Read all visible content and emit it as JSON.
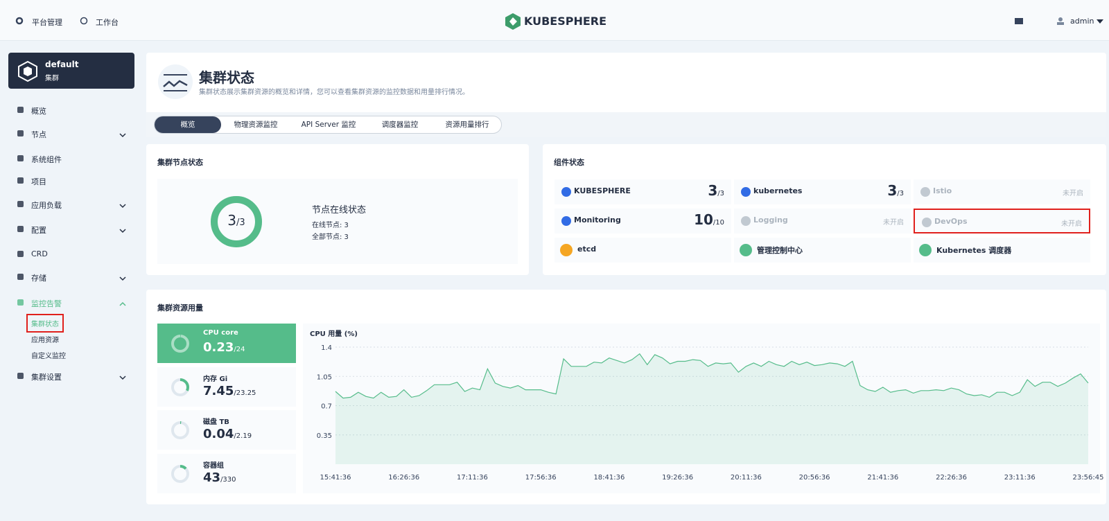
{
  "header": {
    "platform": "平台管理",
    "workbench": "工作台",
    "logo": "KUBESPHERE",
    "user": "admin"
  },
  "cluster": {
    "name": "default",
    "type": "集群"
  },
  "nav": [
    {
      "label": "概览"
    },
    {
      "label": "节点",
      "expandable": true
    },
    {
      "label": "系统组件"
    },
    {
      "label": "项目"
    },
    {
      "label": "应用负载",
      "expandable": true
    },
    {
      "label": "配置",
      "expandable": true
    },
    {
      "label": "CRD"
    },
    {
      "label": "存储",
      "expandable": true
    },
    {
      "label": "监控告警",
      "expanded": true,
      "active": true,
      "children": [
        {
          "label": "集群状态",
          "active": true,
          "highlighted": true
        },
        {
          "label": "应用资源"
        },
        {
          "label": "自定义监控"
        }
      ]
    },
    {
      "label": "集群设置",
      "expandable": true
    }
  ],
  "page": {
    "title": "集群状态",
    "description": "集群状态展示集群资源的概览和详情，您可以查看集群资源的监控数据和用量排行情况。"
  },
  "tabs": {
    "items": [
      "概览",
      "物理资源监控",
      "API Server 监控",
      "调度器监控",
      "资源用量排行"
    ],
    "active": 0
  },
  "node_status": {
    "title": "集群节点状态",
    "online": 3,
    "total": {
      "value": 3,
      "label": "/3"
    },
    "heading": "节点在线状态",
    "details": [
      "在线节点: 3",
      "全部节点: 3"
    ]
  },
  "components": {
    "title": "组件状态",
    "items": [
      {
        "name": "KUBESPHERE",
        "count": 3,
        "total": "/3"
      },
      {
        "name": "kubernetes",
        "count": 3,
        "total": "/3"
      },
      {
        "name": "Istio",
        "status": "未开启"
      },
      {
        "name": "Monitoring",
        "count": 10,
        "total": "/10"
      },
      {
        "name": "Logging",
        "status": "未开启"
      },
      {
        "name": "DevOps",
        "status": "未开启",
        "highlighted": true
      },
      {
        "name": "etcd"
      },
      {
        "name": "管理控制中心"
      },
      {
        "name": "Kubernetes 调度器"
      }
    ]
  },
  "resources": {
    "title": "集群资源用量",
    "cards": [
      {
        "label": "CPU core",
        "value": 0.23,
        "total": {
          "value": 24,
          "label": "/24"
        },
        "active": true
      },
      {
        "label": "内存 Gi",
        "value": 7.45,
        "total": {
          "value": 23.25,
          "label": "/23.25"
        }
      },
      {
        "label": "磁盘 TB",
        "value": 0.04,
        "total": {
          "value": 2.19,
          "label": "/2.19"
        }
      },
      {
        "label": "容器组",
        "value": 43,
        "total": {
          "value": 330,
          "label": "/330"
        }
      }
    ]
  },
  "chart_data": {
    "type": "line",
    "title": "CPU 用量 (%)",
    "color": "#55bc8a",
    "grid": true,
    "categories": [
      "15:41:36",
      null,
      null,
      null,
      null,
      null,
      null,
      null,
      null,
      "16:26:36",
      null,
      null,
      null,
      null,
      null,
      null,
      null,
      null,
      "17:11:36",
      null,
      null,
      null,
      null,
      null,
      null,
      null,
      null,
      "17:56:36",
      null,
      null,
      null,
      null,
      null,
      null,
      null,
      null,
      "18:41:36",
      null,
      null,
      null,
      null,
      null,
      null,
      null,
      null,
      "19:26:36",
      null,
      null,
      null,
      null,
      null,
      null,
      null,
      null,
      "20:11:36",
      null,
      null,
      null,
      null,
      null,
      null,
      null,
      null,
      "20:56:36",
      null,
      null,
      null,
      null,
      null,
      null,
      null,
      null,
      "21:41:36",
      null,
      null,
      null,
      null,
      null,
      null,
      null,
      null,
      "22:26:36",
      null,
      null,
      null,
      null,
      null,
      null,
      null,
      null,
      "23:11:36",
      null,
      null,
      null,
      null,
      null,
      null,
      null,
      null,
      "23:56:45"
    ],
    "values": [
      0.87,
      0.79,
      0.8,
      0.86,
      0.81,
      0.79,
      0.86,
      0.8,
      0.81,
      0.89,
      0.8,
      0.82,
      0.88,
      0.95,
      0.95,
      0.95,
      0.98,
      0.87,
      0.91,
      0.89,
      1.14,
      0.97,
      0.93,
      0.91,
      0.94,
      0.89,
      0.89,
      0.89,
      0.86,
      0.84,
      1.26,
      1.17,
      1.17,
      1.17,
      1.22,
      1.21,
      1.27,
      1.24,
      1.21,
      1.25,
      1.32,
      1.19,
      1.31,
      1.27,
      1.2,
      1.23,
      1.23,
      1.25,
      1.24,
      1.17,
      1.21,
      1.2,
      1.21,
      1.1,
      1.17,
      1.21,
      1.17,
      1.23,
      1.19,
      1.17,
      1.23,
      1.19,
      1.22,
      1.18,
      1.19,
      1.21,
      1.2,
      1.17,
      1.23,
      0.94,
      0.89,
      0.87,
      0.92,
      0.86,
      0.88,
      0.89,
      0.85,
      0.88,
      0.88,
      0.89,
      0.88,
      0.91,
      0.89,
      0.84,
      0.82,
      0.83,
      0.8,
      0.86,
      0.86,
      0.82,
      0.86,
      1.01,
      0.93,
      0.98,
      0.98,
      0.93,
      0.97,
      1.03,
      1.08,
      0.97
    ],
    "ylim": [
      0,
      1.4
    ],
    "yticks": [
      0.35,
      0.7,
      1.05,
      1.4
    ]
  }
}
